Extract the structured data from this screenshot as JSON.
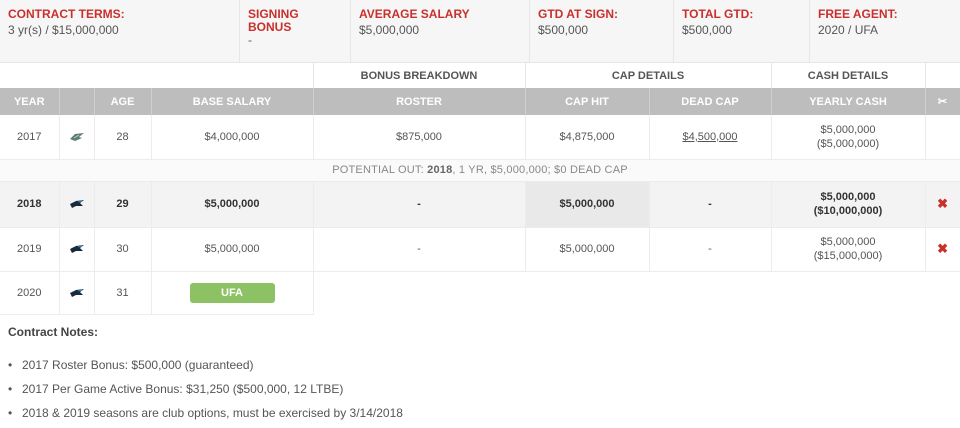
{
  "summary": {
    "contract_terms": {
      "label": "CONTRACT TERMS:",
      "value": "3 yr(s) / $15,000,000"
    },
    "signing_bonus": {
      "label": "SIGNING BONUS",
      "value": "-"
    },
    "average_salary": {
      "label": "AVERAGE SALARY",
      "value": "$5,000,000"
    },
    "gtd_at_sign": {
      "label": "GTD AT SIGN:",
      "value": "$500,000"
    },
    "total_gtd": {
      "label": "TOTAL GTD:",
      "value": "$500,000"
    },
    "free_agent": {
      "label": "FREE AGENT:",
      "value": "2020 / UFA"
    }
  },
  "table": {
    "groups": {
      "bonus": "BONUS BREAKDOWN",
      "cap": "CAP DETAILS",
      "cash": "CASH DETAILS"
    },
    "columns": {
      "year": "YEAR",
      "age": "AGE",
      "base_salary": "BASE SALARY",
      "roster": "ROSTER",
      "cap_hit": "CAP HIT",
      "dead_cap": "DEAD CAP",
      "yearly_cash": "YEARLY CASH",
      "cut_icon": "✂"
    },
    "rows": [
      {
        "year": "2017",
        "team": "eagles-logo",
        "age": "28",
        "base_salary": "$4,000,000",
        "roster": "$875,000",
        "cap_hit": "$4,875,000",
        "dead_cap": "$4,500,000",
        "cash": "$5,000,000",
        "cash_cum": "($5,000,000)",
        "cut": ""
      },
      {
        "year": "2018",
        "team": "panthers-logo",
        "age": "29",
        "base_salary": "$5,000,000",
        "roster": "-",
        "cap_hit": "$5,000,000",
        "dead_cap": "-",
        "cash": "$5,000,000",
        "cash_cum": "($10,000,000)",
        "cut": "✖"
      },
      {
        "year": "2019",
        "team": "panthers-logo",
        "age": "30",
        "base_salary": "$5,000,000",
        "roster": "-",
        "cap_hit": "$5,000,000",
        "dead_cap": "-",
        "cash": "$5,000,000",
        "cash_cum": "($15,000,000)",
        "cut": "✖"
      },
      {
        "year": "2020",
        "team": "panthers-logo",
        "age": "31",
        "status": "UFA"
      }
    ],
    "potential_out": {
      "prefix": "POTENTIAL OUT:",
      "year": "2018",
      "details": ", 1 YR, $5,000,000; $0 DEAD CAP"
    }
  },
  "notes": {
    "title": "Contract Notes:",
    "items": [
      "2017 Roster Bonus: $500,000 (guaranteed)",
      "2017 Per Game Active Bonus: $31,250 ($500,000, 12 LTBE)",
      "2018 & 2019 seasons are club options, must be exercised by 3/14/2018"
    ]
  },
  "colors": {
    "accent_red": "#c9302c",
    "header_gray": "#bdbdbd",
    "ufa_green": "#8cc263"
  }
}
